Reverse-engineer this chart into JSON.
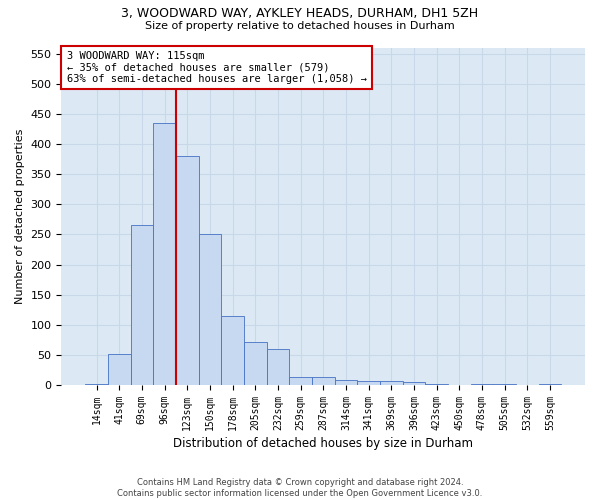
{
  "title1": "3, WOODWARD WAY, AYKLEY HEADS, DURHAM, DH1 5ZH",
  "title2": "Size of property relative to detached houses in Durham",
  "xlabel": "Distribution of detached houses by size in Durham",
  "ylabel": "Number of detached properties",
  "categories": [
    "14sqm",
    "41sqm",
    "69sqm",
    "96sqm",
    "123sqm",
    "150sqm",
    "178sqm",
    "205sqm",
    "232sqm",
    "259sqm",
    "287sqm",
    "314sqm",
    "341sqm",
    "369sqm",
    "396sqm",
    "423sqm",
    "450sqm",
    "478sqm",
    "505sqm",
    "532sqm",
    "559sqm"
  ],
  "values": [
    2,
    52,
    265,
    435,
    380,
    250,
    115,
    72,
    60,
    14,
    14,
    8,
    7,
    6,
    5,
    2,
    0,
    2,
    1,
    0,
    1
  ],
  "bar_color": "#c6d9f0",
  "bar_edge_color": "#4472c4",
  "grid_color": "#c8d8e8",
  "background_color": "#dce9f5",
  "vline_index": 3.5,
  "vline_color": "#cc0000",
  "annotation_text": "3 WOODWARD WAY: 115sqm\n← 35% of detached houses are smaller (579)\n63% of semi-detached houses are larger (1,058) →",
  "annotation_box_color": "#ffffff",
  "annotation_box_edge": "#cc0000",
  "footer1": "Contains HM Land Registry data © Crown copyright and database right 2024.",
  "footer2": "Contains public sector information licensed under the Open Government Licence v3.0.",
  "ylim": [
    0,
    560
  ],
  "yticks": [
    0,
    50,
    100,
    150,
    200,
    250,
    300,
    350,
    400,
    450,
    500,
    550
  ]
}
